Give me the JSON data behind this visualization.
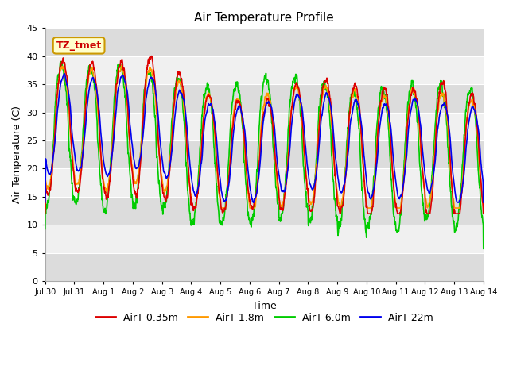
{
  "title": "Air Temperature Profile",
  "xlabel": "Time",
  "ylabel": "Air Temperature (C)",
  "ylim": [
    0,
    45
  ],
  "yticks": [
    0,
    5,
    10,
    15,
    20,
    25,
    30,
    35,
    40,
    45
  ],
  "xtick_labels": [
    "Jul 30",
    "Jul 31",
    "Aug 1",
    "Aug 2",
    "Aug 3",
    "Aug 4",
    "Aug 5",
    "Aug 6",
    "Aug 7",
    "Aug 8",
    "Aug 9",
    "Aug 10",
    "Aug 11",
    "Aug 12",
    "Aug 13",
    "Aug 14"
  ],
  "line_colors": {
    "AirT 0.35m": "#dd0000",
    "AirT 1.8m": "#ff9900",
    "AirT 6.0m": "#00cc00",
    "AirT 22m": "#0000ee"
  },
  "line_width": 1.2,
  "legend_labels": [
    "AirT 0.35m",
    "AirT 1.8m",
    "AirT 6.0m",
    "AirT 22m"
  ],
  "annotation_text": "TZ_tmet",
  "annotation_color": "#cc0000",
  "annotation_bg": "#ffffcc",
  "annotation_border": "#cc9900",
  "background_light": "#f0f0f0",
  "background_dark": "#dcdcdc",
  "grid_color": "#ffffff",
  "n_days": 15,
  "samples_per_day": 144
}
